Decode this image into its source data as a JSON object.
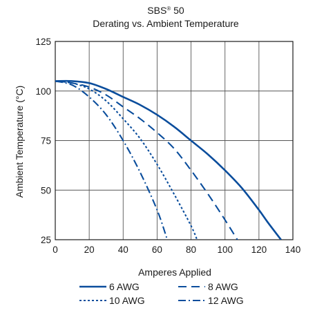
{
  "chart_data": {
    "type": "line",
    "title_brand": "SBS",
    "title_reg": "®",
    "title_model": " 50",
    "subtitle": "Derating vs. Ambient Temperature",
    "xlabel": "Amperes Applied",
    "ylabel": "Ambient Temperature (°C)",
    "xlim": [
      0,
      140
    ],
    "ylim": [
      25,
      125
    ],
    "xticks": [
      "0",
      "20",
      "40",
      "60",
      "80",
      "100",
      "120",
      "140"
    ],
    "yticks": [
      "25",
      "50",
      "75",
      "100",
      "125"
    ],
    "grid": true,
    "legend_position": "bottom",
    "line_color": "#0a4d9c",
    "series": [
      {
        "name": "6 AWG",
        "dash": "solid",
        "x": [
          0,
          10,
          20,
          30,
          40,
          50,
          60,
          70,
          80,
          90,
          100,
          110,
          120,
          125,
          133
        ],
        "y": [
          105,
          105,
          104,
          101,
          97,
          93,
          88,
          82,
          75,
          68,
          60,
          51,
          40,
          34,
          25
        ]
      },
      {
        "name": "8 AWG",
        "dash": "dash",
        "x": [
          0,
          10,
          20,
          30,
          40,
          50,
          60,
          70,
          80,
          90,
          100,
          108
        ],
        "y": [
          105,
          104,
          102,
          98,
          92,
          86,
          79,
          71,
          60,
          48,
          35,
          24
        ]
      },
      {
        "name": "10 AWG",
        "dash": "dot",
        "x": [
          0,
          10,
          20,
          30,
          40,
          50,
          60,
          70,
          80,
          84
        ],
        "y": [
          105,
          104,
          101,
          95,
          86,
          76,
          63,
          48,
          32,
          24
        ]
      },
      {
        "name": "12 AWG",
        "dash": "dashdot",
        "x": [
          0,
          10,
          20,
          30,
          40,
          50,
          60,
          66
        ],
        "y": [
          105,
          103,
          97,
          88,
          75,
          59,
          40,
          25
        ]
      }
    ]
  }
}
